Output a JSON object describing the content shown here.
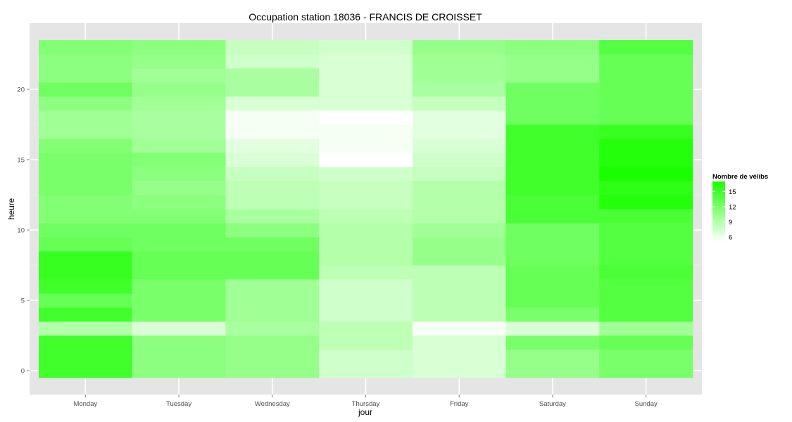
{
  "chart_data": {
    "type": "heatmap",
    "title": "Occupation station 18036 - FRANCIS DE CROISSET",
    "xlabel": "jour",
    "ylabel": "heure",
    "x_categories": [
      "Monday",
      "Tuesday",
      "Wednesday",
      "Thursday",
      "Friday",
      "Saturday",
      "Sunday"
    ],
    "y_range": [
      -0.5,
      23.5
    ],
    "y_ticks": [
      0,
      5,
      10,
      15,
      20
    ],
    "grid": true,
    "legend": {
      "title": "Nombre de vélibs",
      "position": "right",
      "min": 5,
      "max": 17,
      "breaks": [
        6,
        9,
        12,
        15
      ],
      "low_color": "#ffffff",
      "high_color": "#1aff00"
    },
    "hours": [
      0,
      1,
      2,
      3,
      4,
      5,
      6,
      7,
      8,
      9,
      10,
      11,
      12,
      13,
      14,
      15,
      16,
      17,
      18,
      19,
      20,
      21,
      22,
      23
    ],
    "values": {
      "Monday": [
        15,
        15,
        15,
        9,
        15,
        13,
        15,
        15.5,
        15.5,
        13,
        12.5,
        11.5,
        11.5,
        12,
        12,
        12,
        11.5,
        10,
        10,
        11,
        12.5,
        11,
        11,
        11.5
      ],
      "Tuesday": [
        11,
        11,
        11,
        7,
        12,
        12,
        12,
        13,
        13,
        12.5,
        12.5,
        11.5,
        11,
        10.5,
        11,
        11.5,
        10,
        9.5,
        9.5,
        10,
        10.5,
        10,
        10.5,
        11
      ],
      "Wednesday": [
        10.5,
        10.5,
        10.5,
        9.5,
        10,
        10,
        10,
        13,
        13,
        12.5,
        11,
        9.5,
        8.5,
        8.5,
        8,
        7,
        6.5,
        5.5,
        5.5,
        7,
        9.5,
        9.5,
        7.5,
        8
      ],
      "Thursday": [
        7.5,
        7.5,
        8.5,
        8.5,
        7.5,
        7.5,
        7.5,
        8.5,
        9,
        9,
        9,
        8.5,
        8,
        8,
        7.5,
        5,
        5.5,
        5.5,
        5,
        7,
        7,
        7,
        7,
        7.5
      ],
      "Friday": [
        7,
        7,
        7,
        5.5,
        8.5,
        8.5,
        8.5,
        8.5,
        10.5,
        10.5,
        10,
        9,
        9,
        9,
        8,
        7.5,
        7,
        6.5,
        6.5,
        8,
        9.5,
        10,
        10,
        10.5
      ],
      "Saturday": [
        10.5,
        10.5,
        12,
        7,
        12,
        13,
        13,
        13,
        12.5,
        12.5,
        12.5,
        14.5,
        14.5,
        15,
        15,
        15,
        15,
        15,
        12.5,
        12.5,
        12.5,
        10.5,
        10.5,
        11
      ],
      "Sunday": [
        12,
        12,
        13,
        10,
        14,
        14,
        14,
        14.5,
        14,
        14,
        14,
        14.5,
        16.5,
        16,
        17,
        16.5,
        16.5,
        15.5,
        13,
        13,
        13,
        13,
        13,
        14
      ]
    }
  }
}
